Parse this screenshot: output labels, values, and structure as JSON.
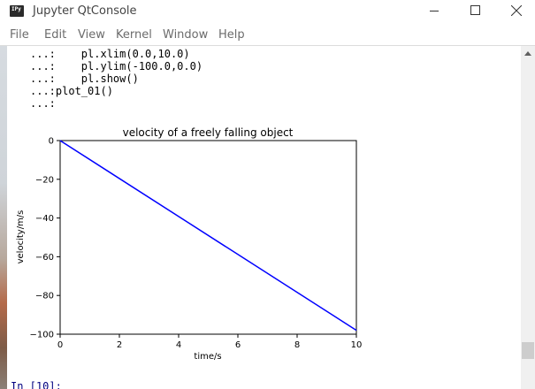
{
  "window": {
    "title": "Jupyter QtConsole",
    "icon_text": "IPy",
    "icon": "jupyter-qtconsole-icon"
  },
  "menu": {
    "items": [
      "File",
      "Edit",
      "View",
      "Kernel",
      "Window",
      "Help"
    ]
  },
  "console": {
    "lines": [
      {
        "prompt": "...:",
        "code": "    pl.xlim(0.0,10.0)"
      },
      {
        "prompt": "...:",
        "code": "    pl.ylim(-100.0,0.0)"
      },
      {
        "prompt": "...:",
        "code": "    pl.show()"
      },
      {
        "prompt": "...:",
        "code": "plot_01()"
      },
      {
        "prompt": "...:",
        "code": ""
      }
    ],
    "input_prompt": "In [10]:"
  },
  "colors": {
    "line": "#0000ff",
    "prompt": "#000080"
  },
  "chart_data": {
    "type": "line",
    "title": "velocity of a freely falling object",
    "xlabel": "time/s",
    "ylabel": "velocity/m/s",
    "xlim": [
      0,
      10
    ],
    "ylim": [
      -100,
      0
    ],
    "xticks": [
      0,
      2,
      4,
      6,
      8,
      10
    ],
    "xtick_labels": [
      "0",
      "2",
      "4",
      "6",
      "8",
      "10"
    ],
    "yticks": [
      0,
      -20,
      -40,
      -60,
      -80,
      -100
    ],
    "ytick_labels": [
      "0",
      "−20",
      "−40",
      "−60",
      "−80",
      "−100"
    ],
    "grid": false,
    "series": [
      {
        "x": [
          0,
          10
        ],
        "y": [
          0,
          -98
        ],
        "color": "#0000ff"
      }
    ]
  }
}
